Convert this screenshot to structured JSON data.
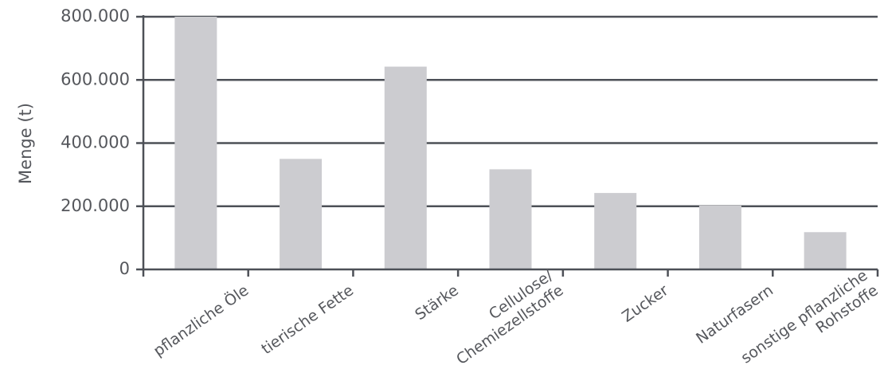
{
  "chart_data": {
    "type": "bar",
    "ylabel": "Menge (t)",
    "xlabel": "",
    "ylim": [
      0,
      800000
    ],
    "yticks": [
      {
        "value": 0,
        "label": "0"
      },
      {
        "value": 200000,
        "label": "200.000"
      },
      {
        "value": 400000,
        "label": "400.000"
      },
      {
        "value": 600000,
        "label": "600.000"
      },
      {
        "value": 800000,
        "label": "800.000"
      }
    ],
    "grid": true,
    "categories": [
      [
        "pflanzliche Öle"
      ],
      [
        "tierische Fette"
      ],
      [
        "Stärke"
      ],
      [
        "Cellulose/",
        "Chemiezellstoffe"
      ],
      [
        "Zucker"
      ],
      [
        "Naturfasern"
      ],
      [
        "sonstige pflanzliche",
        "Rohstoffe"
      ]
    ],
    "values": [
      800000,
      350000,
      642000,
      317000,
      242000,
      202000,
      118000
    ],
    "colors": {
      "bar": "#ccccd0",
      "grid": "#4d5057",
      "text": "#55575c"
    }
  }
}
